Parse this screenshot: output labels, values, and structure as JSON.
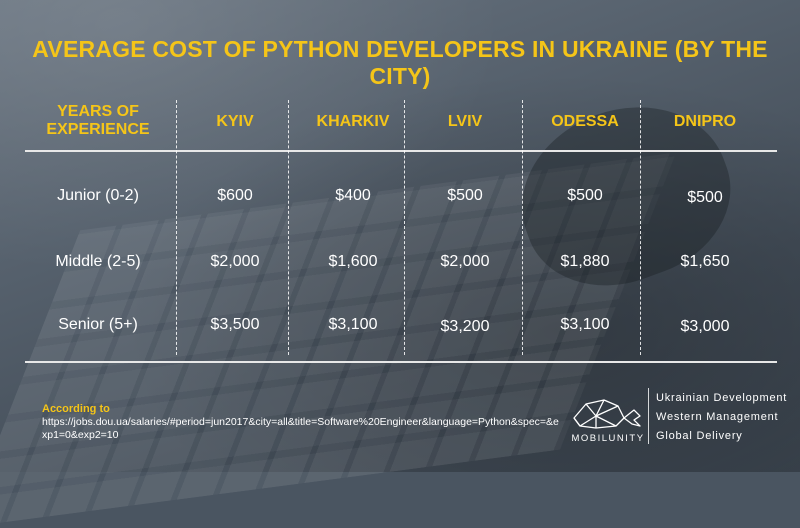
{
  "title": "AVERAGE COST OF PYTHON DEVELOPERS IN UKRAINE (BY THE CITY)",
  "table": {
    "row_header_line1": "YEARS OF",
    "row_header_line2": "EXPERIENCE",
    "columns": [
      "KYIV",
      "KHARKIV",
      "LVIV",
      "ODESSA",
      "DNIPRO"
    ],
    "rows": [
      {
        "label": "Junior (0-2)",
        "values": [
          "$600",
          "$400",
          "$500",
          "$500",
          "$500"
        ]
      },
      {
        "label": "Middle (2-5)",
        "values": [
          "$2,000",
          "$1,600",
          "$2,000",
          "$1,880",
          "$1,650"
        ]
      },
      {
        "label": "Senior (5+)",
        "values": [
          "$3,500",
          "$3,100",
          "$3,200",
          "$3,100",
          "$3,000"
        ]
      }
    ]
  },
  "source": {
    "label": "According to",
    "url": "https://jobs.dou.ua/salaries/#period=jun2017&city=all&title=Software%20Engineer&language=Python&spec=&exp1=0&exp2=10"
  },
  "brand": {
    "name": "MOBILUNITY",
    "taglines": [
      "Ukrainian Development",
      "Western Management",
      "Global Delivery"
    ],
    "logo_icon": "whale-icon"
  },
  "colors": {
    "accent": "#f5c518",
    "text": "#ffffff"
  }
}
